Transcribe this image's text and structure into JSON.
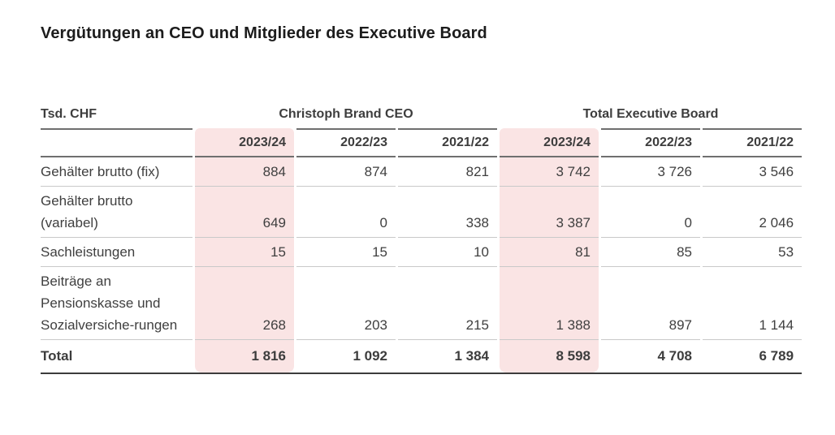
{
  "title": "Vergütungen an CEO und Mitglieder des Executive Board",
  "table": {
    "unit_label": "Tsd. CHF",
    "groups": [
      {
        "label": "Christoph Brand CEO"
      },
      {
        "label": "Total Executive Board"
      }
    ],
    "year_headers": [
      "2023/24",
      "2022/23",
      "2021/22",
      "2023/24",
      "2022/23",
      "2021/22"
    ],
    "highlighted_year": "2023/24",
    "highlight_color": "#fae4e4",
    "rows": [
      {
        "label": "Gehälter brutto (fix)",
        "values": [
          "884",
          "874",
          "821",
          "3 742",
          "3 726",
          "3 546"
        ]
      },
      {
        "label": "Gehälter brutto (variabel)",
        "values": [
          "649",
          "0",
          "338",
          "3 387",
          "0",
          "2 046"
        ]
      },
      {
        "label": "Sachleistungen",
        "values": [
          "15",
          "15",
          "10",
          "81",
          "85",
          "53"
        ]
      },
      {
        "label": "Beiträge an Pensionskasse und Sozialversiche-rungen",
        "values": [
          "268",
          "203",
          "215",
          "1 388",
          "897",
          "1 144"
        ]
      }
    ],
    "total_row": {
      "label": "Total",
      "values": [
        "1 816",
        "1 092",
        "1 384",
        "8 598",
        "4 708",
        "6 789"
      ]
    }
  }
}
